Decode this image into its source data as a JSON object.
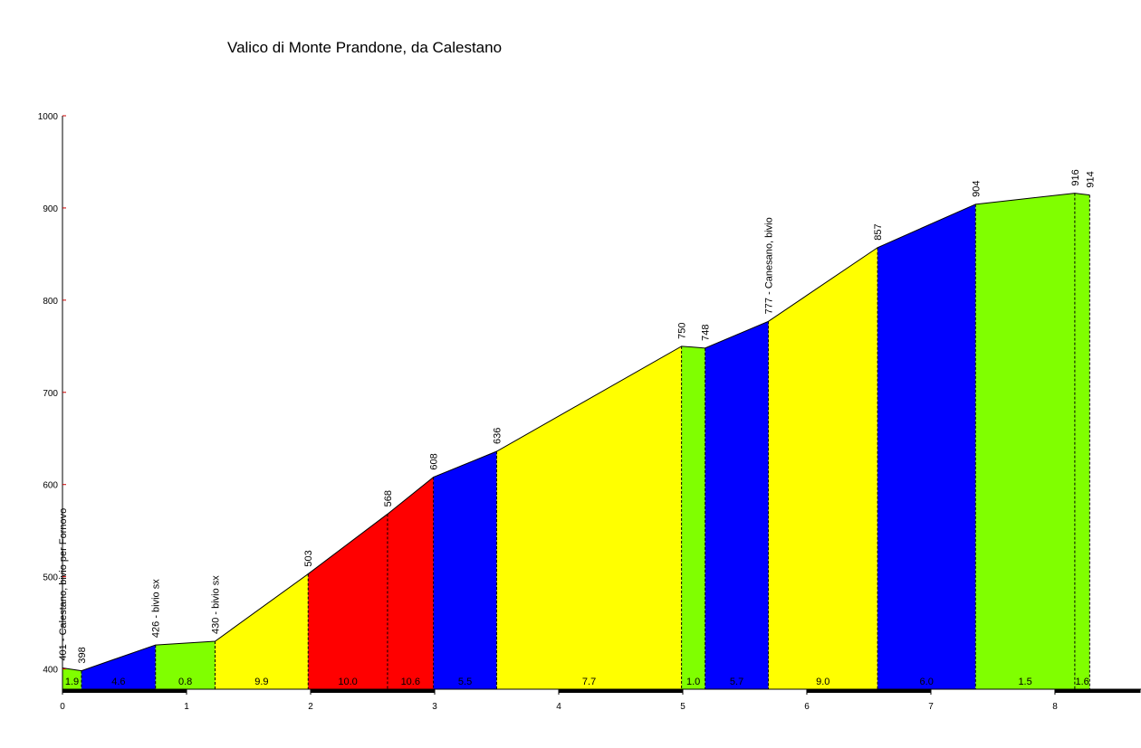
{
  "chart_data": {
    "type": "area",
    "title": "Valico di Monte Prandone, da Calestano",
    "x": [
      0,
      0.153,
      0.75,
      1.23,
      1.98,
      2.62,
      2.99,
      3.5,
      4.99,
      5.18,
      5.69,
      6.57,
      7.36,
      8.16,
      8.28
    ],
    "series": [
      {
        "values": [
          401,
          398,
          426,
          430,
          503,
          568,
          608,
          636,
          750,
          748,
          777,
          857,
          904,
          916,
          914
        ],
        "value_labels": [
          "401 - Calestano, bivio per Fornovo",
          "398",
          "426 - bivio sx",
          "430 - bivio sx",
          "503",
          "568",
          "608",
          "636",
          "750",
          "748",
          "777 - Canesano, bivio",
          "857",
          "904",
          "916",
          "914"
        ]
      }
    ],
    "gradients": [
      1.9,
      4.6,
      0.8,
      9.9,
      10.0,
      10.6,
      5.5,
      7.7,
      1.0,
      5.7,
      9.0,
      6.0,
      1.5,
      1.6
    ],
    "gradient_labels": [
      "1.9",
      "4.6",
      "0.8",
      "9.9",
      "10.0",
      "10.6",
      "5.5",
      "7.7",
      "1.0",
      "5.7",
      "9.0",
      "6.0",
      "1.5",
      "1.6"
    ],
    "segment_colors": [
      "#80ff00",
      "#0000ff",
      "#80ff00",
      "#ffff00",
      "#ff0000",
      "#ff0000",
      "#0000ff",
      "#ffff00",
      "#80ff00",
      "#0000ff",
      "#ffff00",
      "#0000ff",
      "#80ff00",
      "#80ff00"
    ],
    "xlim": [
      0,
      8.69
    ],
    "xticks": [
      0,
      1,
      2,
      3,
      4,
      5,
      6,
      7,
      8
    ],
    "ylim": [
      378,
      1000
    ],
    "yticks": [
      400,
      500,
      600,
      700,
      800,
      900,
      1000
    ]
  }
}
